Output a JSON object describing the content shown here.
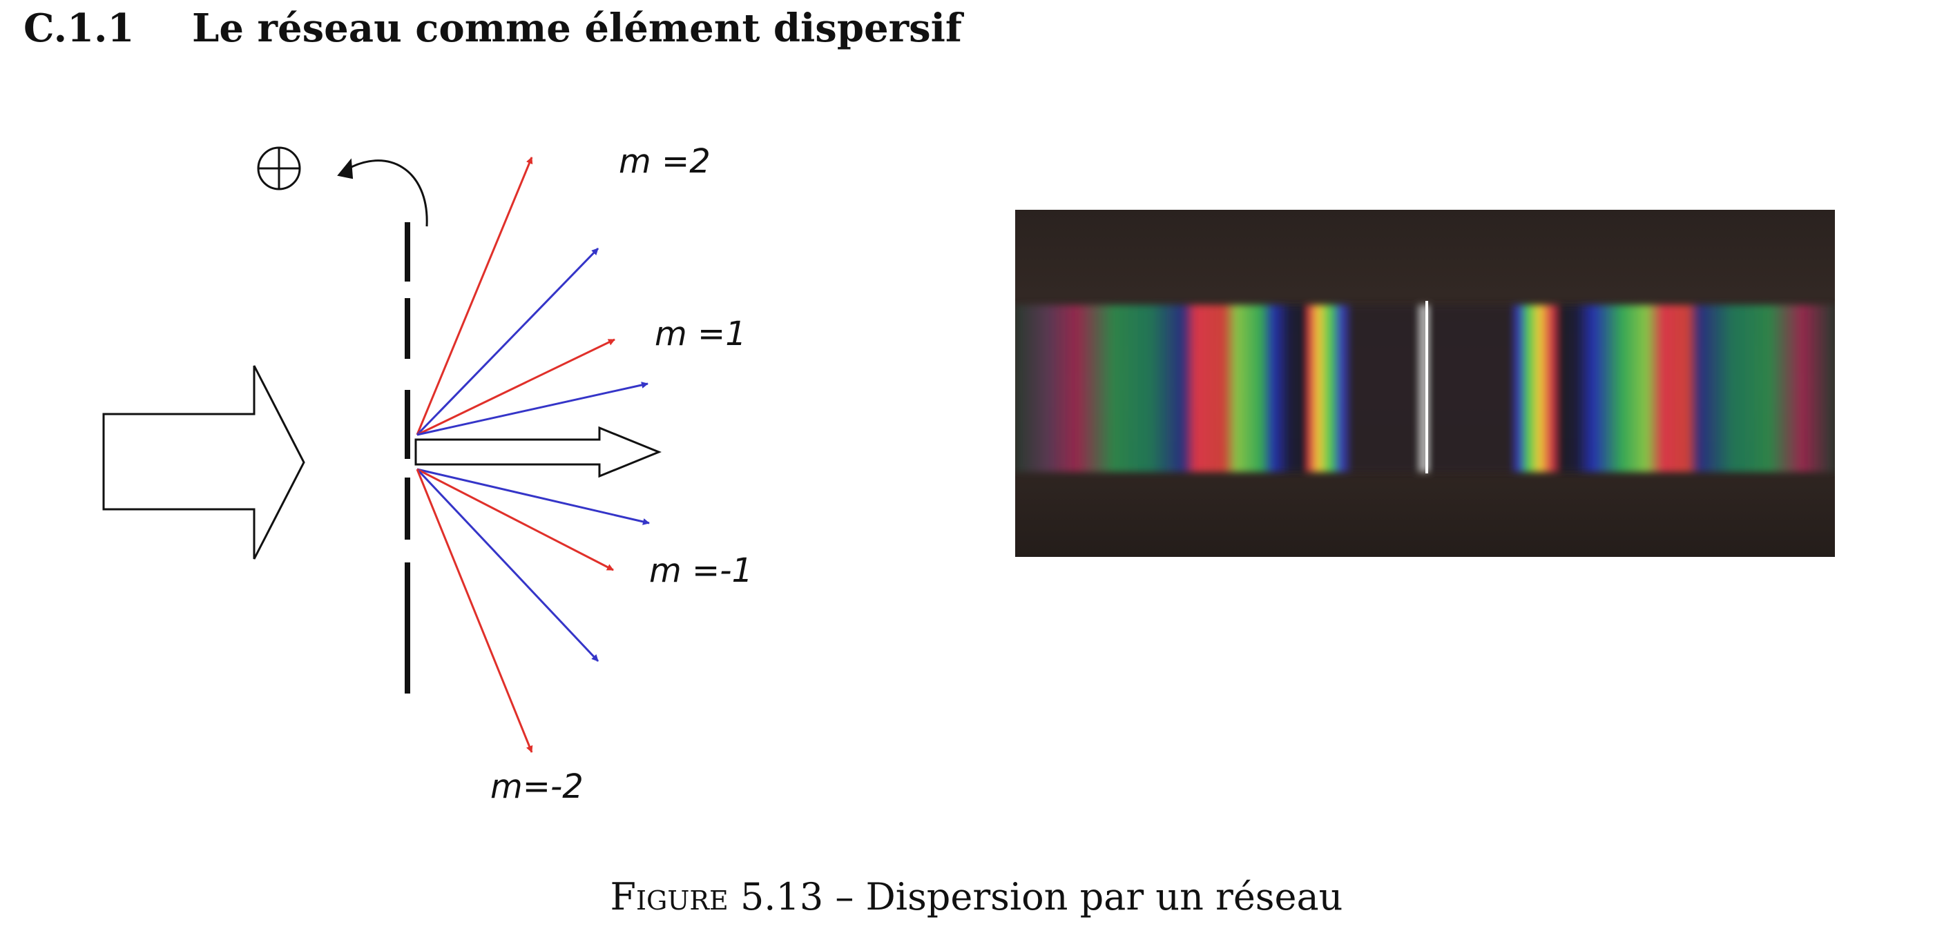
{
  "section": {
    "number": "C.1.1",
    "title": "Le réseau comme élément dispersif"
  },
  "diagram": {
    "labels": {
      "m_pos2": "m =2",
      "m_pos1": "m =1",
      "m_neg1": "m =-1",
      "m_neg2": "m=-2",
      "rotation_sign": "⊕"
    },
    "colors": {
      "red_ray": "#e0302a",
      "blue_ray": "#3535c8"
    }
  },
  "figure": {
    "caption_prefix": "Figure",
    "caption_number": "5.13",
    "caption_separator": "–",
    "caption_text": "Dispersion par un réseau"
  }
}
